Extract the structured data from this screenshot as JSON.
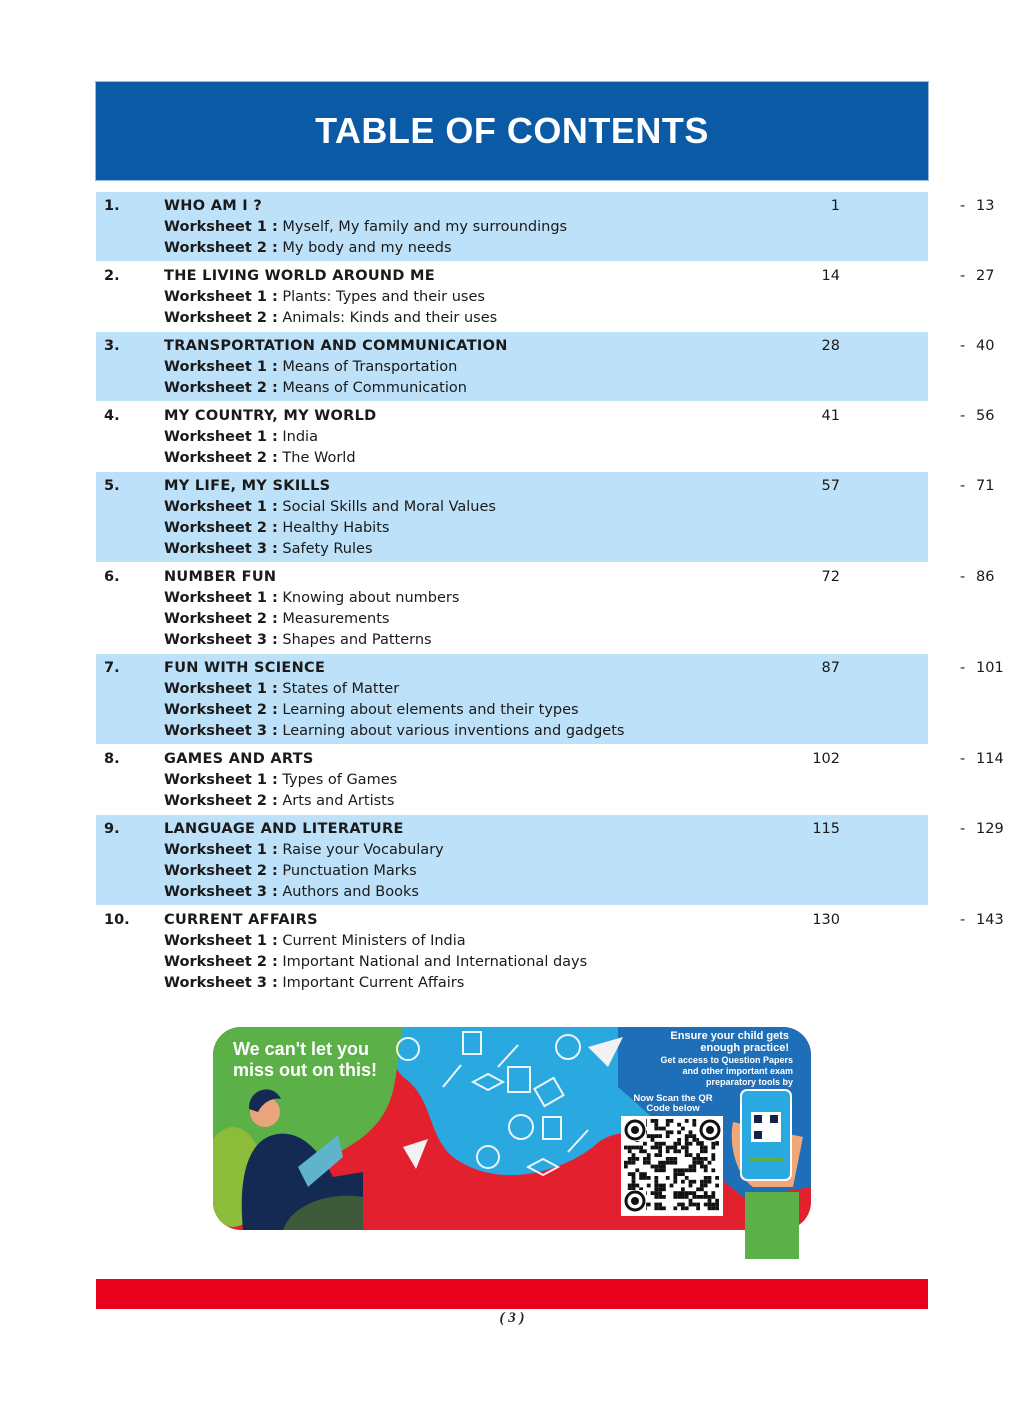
{
  "header": {
    "title": "TABLE OF CONTENTS"
  },
  "chapters": [
    {
      "num": "1.",
      "title": "WHO AM I ?",
      "start": "1",
      "end": "13",
      "worksheets": [
        {
          "label": "Worksheet 1 :",
          "text": "Myself, My family and my surroundings"
        },
        {
          "label": "Worksheet 2 :",
          "text": "My body and my needs"
        }
      ]
    },
    {
      "num": "2.",
      "title": "THE LIVING WORLD AROUND ME",
      "start": "14",
      "end": "27",
      "worksheets": [
        {
          "label": "Worksheet 1 :",
          "text": "Plants: Types and their uses"
        },
        {
          "label": "Worksheet 2 :",
          "text": "Animals: Kinds and their uses"
        }
      ]
    },
    {
      "num": "3.",
      "title": "TRANSPORTATION AND COMMUNICATION",
      "start": "28",
      "end": "40",
      "worksheets": [
        {
          "label": "Worksheet 1 :",
          "text": "Means of Transportation"
        },
        {
          "label": "Worksheet 2 :",
          "text": "Means of Communication"
        }
      ]
    },
    {
      "num": "4.",
      "title": "MY COUNTRY, MY WORLD",
      "start": "41",
      "end": "56",
      "worksheets": [
        {
          "label": "Worksheet 1 :",
          "text": "India"
        },
        {
          "label": "Worksheet 2 :",
          "text": "The World"
        }
      ]
    },
    {
      "num": "5.",
      "title": "MY LIFE, MY SKILLS",
      "start": "57",
      "end": "71",
      "worksheets": [
        {
          "label": "Worksheet 1 :",
          "text": "Social Skills and Moral Values"
        },
        {
          "label": "Worksheet 2 :",
          "text": "Healthy Habits"
        },
        {
          "label": "Worksheet 3 :",
          "text": "Safety Rules"
        }
      ]
    },
    {
      "num": "6.",
      "title": "NUMBER FUN",
      "start": "72",
      "end": "86",
      "worksheets": [
        {
          "label": "Worksheet 1 :",
          "text": "Knowing about numbers"
        },
        {
          "label": "Worksheet 2 :",
          "text": "Measurements"
        },
        {
          "label": "Worksheet 3 :",
          "text": "Shapes and Patterns"
        }
      ]
    },
    {
      "num": "7.",
      "title": "FUN WITH SCIENCE",
      "start": "87",
      "end": "101",
      "worksheets": [
        {
          "label": "Worksheet 1 :",
          "text": "States of Matter"
        },
        {
          "label": "Worksheet 2 :",
          "text": "Learning about elements and their types"
        },
        {
          "label": "Worksheet 3 :",
          "text": "Learning about various inventions and gadgets"
        }
      ]
    },
    {
      "num": "8.",
      "title": "GAMES AND ARTS",
      "start": "102",
      "end": "114",
      "worksheets": [
        {
          "label": "Worksheet 1 :",
          "text": "Types of Games"
        },
        {
          "label": "Worksheet 2 :",
          "text": "Arts and Artists"
        }
      ]
    },
    {
      "num": "9.",
      "title": "LANGUAGE AND LITERATURE",
      "start": "115",
      "end": "129",
      "worksheets": [
        {
          "label": "Worksheet 1 :",
          "text": "Raise your Vocabulary"
        },
        {
          "label": "Worksheet 2 :",
          "text": "Punctuation Marks"
        },
        {
          "label": "Worksheet 3 :",
          "text": "Authors and Books"
        }
      ]
    },
    {
      "num": "10.",
      "title": "CURRENT AFFAIRS",
      "start": "130",
      "end": "143",
      "worksheets": [
        {
          "label": "Worksheet 1 :",
          "text": "Current Ministers of India"
        },
        {
          "label": "Worksheet 2 :",
          "text": "Important National and International days"
        },
        {
          "label": "Worksheet 3 :",
          "text": "Important Current Affairs"
        }
      ]
    }
  ],
  "page_separator": "-",
  "banner": {
    "headline_1": "We can't let you",
    "headline_2": "miss out on this!",
    "promo": [
      "Ensure your child gets",
      "enough practice!",
      "Get access to Question Papers",
      "and other important exam",
      "preparatory tools by"
    ],
    "scan": [
      "Now Scan the QR",
      "Code below"
    ],
    "colors": {
      "green": "#5cb048",
      "red": "#e3202e",
      "cyan": "#2aa8e0",
      "blue": "#1e6fb8"
    }
  },
  "footer": {
    "page_number": "( 3 )",
    "bar_color": "#e8001c"
  }
}
